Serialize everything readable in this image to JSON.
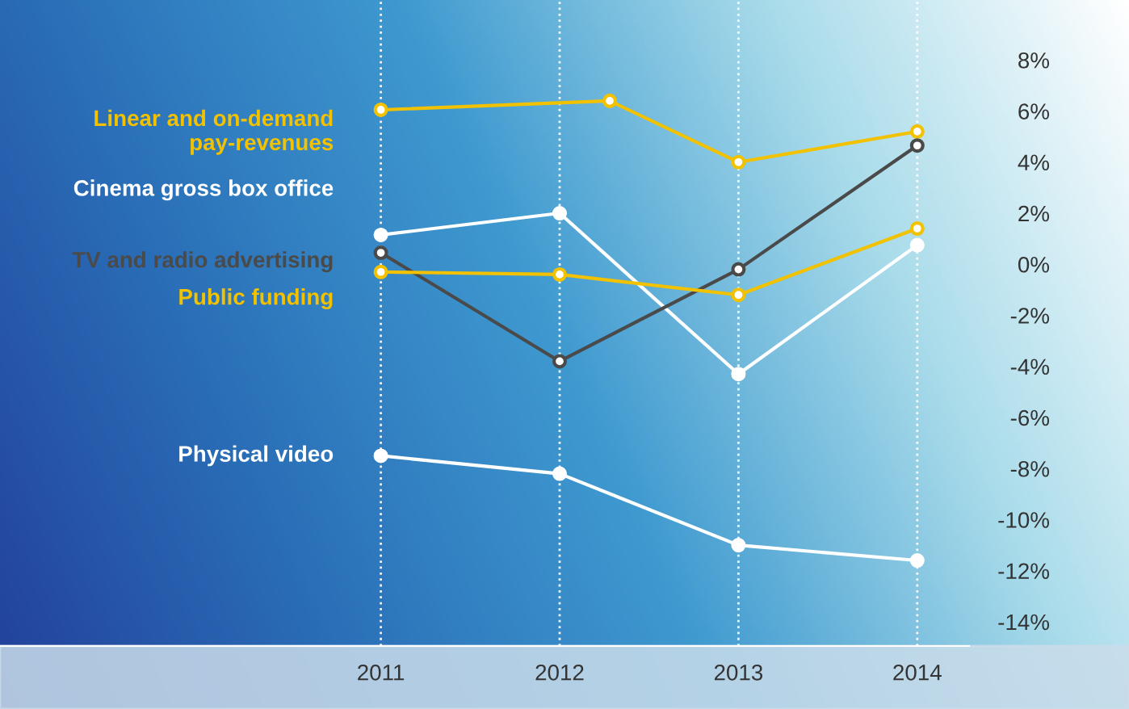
{
  "chart_data": {
    "type": "line",
    "x": [
      2011,
      2012,
      2013,
      2014
    ],
    "series": [
      {
        "name": "Linear and on-demand\npay-revenues",
        "color": "#f2c200",
        "x": [
          2011,
          2012.28,
          2013,
          2014
        ],
        "values": [
          6.05,
          6.4,
          4.0,
          5.2
        ]
      },
      {
        "name": "Cinema gross box office",
        "color": "#ffffff",
        "values": [
          1.15,
          2.0,
          -4.3,
          0.75
        ]
      },
      {
        "name": "TV and radio advertising",
        "color": "#4a4a4a",
        "values": [
          0.45,
          -3.8,
          -0.2,
          4.65
        ]
      },
      {
        "name": "Public funding",
        "color": "#f2c200",
        "values": [
          -0.3,
          -0.4,
          -1.2,
          1.4
        ]
      },
      {
        "name": "Physical video",
        "color": "#ffffff",
        "values": [
          -7.5,
          -8.2,
          -11.0,
          -11.6
        ]
      }
    ],
    "xlim": [
      2008.87,
      2014.29
    ],
    "ylim": [
      -14.95,
      10.35
    ],
    "xticks": [
      2011,
      2012,
      2013,
      2014
    ],
    "yticks": [
      {
        "value": 8,
        "label": "8%"
      },
      {
        "value": 6,
        "label": "6%"
      },
      {
        "value": 4,
        "label": "4%"
      },
      {
        "value": 2,
        "label": "2%"
      },
      {
        "value": 0,
        "label": "0%"
      },
      {
        "value": -2,
        "label": "-2%"
      },
      {
        "value": -4,
        "label": "-4%"
      },
      {
        "value": -6,
        "label": "-6%"
      },
      {
        "value": -8,
        "label": "-8%"
      },
      {
        "value": -10,
        "label": "-10%"
      },
      {
        "value": -12,
        "label": "-12%"
      },
      {
        "value": -14,
        "label": "-14%"
      }
    ],
    "grid": "x",
    "marker": "circle",
    "line_style": "solid",
    "legend": false
  }
}
